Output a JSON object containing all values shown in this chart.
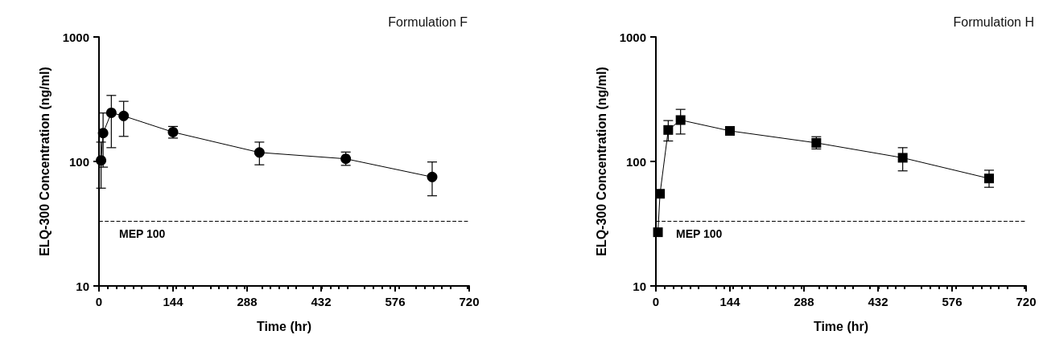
{
  "chart_data": [
    {
      "type": "line",
      "title": "Formulation F",
      "xlabel": "Time (hr)",
      "ylabel": "ELQ-300 Concentration (ng/ml)",
      "x": [
        4,
        8,
        24,
        48,
        144,
        312,
        480,
        648
      ],
      "log": "y",
      "marker": "circle",
      "line_style": "solid",
      "series": [
        {
          "color": "#000000",
          "values": [
            102,
            169,
            246,
            232,
            172,
            118,
            105,
            75
          ],
          "errors": [
            [
              61,
              143
            ],
            [
              90,
              245
            ],
            [
              129,
              339
            ],
            [
              159,
              304
            ],
            [
              154,
              191
            ],
            [
              94,
              143
            ],
            [
              93,
              119
            ],
            [
              53,
              99
            ]
          ]
        }
      ],
      "xlim": [
        0,
        720
      ],
      "xticks": [
        0,
        144,
        288,
        432,
        576,
        720
      ],
      "ylim": [
        10,
        1000
      ],
      "yticks": [
        10,
        100,
        1000
      ],
      "ref_lines": [
        {
          "axis": "y",
          "value": 33,
          "label": "MEP 100",
          "color": "#000000",
          "line_style": "dashed"
        }
      ]
    },
    {
      "type": "line",
      "title": "Formulation H",
      "xlabel": "Time (hr)",
      "ylabel": "ELQ-300 Concentration (ng/ml)",
      "x": [
        4,
        8,
        24,
        48,
        144,
        312,
        480,
        648
      ],
      "log": "y",
      "marker": "square",
      "line_style": "solid",
      "series": [
        {
          "color": "#000000",
          "values": [
            27,
            55,
            179,
            215,
            176,
            141,
            107,
            73
          ],
          "errors": [
            null,
            null,
            [
              146,
              213
            ],
            [
              166,
              262
            ],
            [
              164,
              188
            ],
            [
              126,
              158
            ],
            [
              84,
              129
            ],
            [
              62,
              85
            ]
          ]
        }
      ],
      "xlim": [
        0,
        720
      ],
      "xticks": [
        0,
        144,
        288,
        432,
        576,
        720
      ],
      "ylim": [
        10,
        1000
      ],
      "yticks": [
        10,
        100,
        1000
      ],
      "ref_lines": [
        {
          "axis": "y",
          "value": 33,
          "label": "MEP 100",
          "color": "#000000",
          "line_style": "dashed"
        }
      ]
    }
  ]
}
